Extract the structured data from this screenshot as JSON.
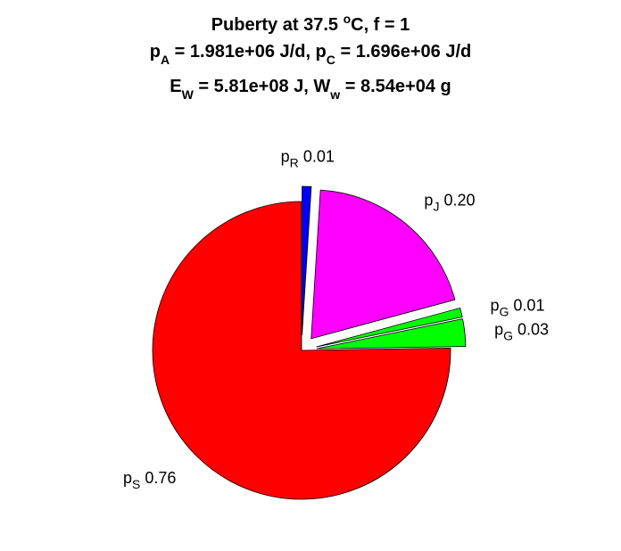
{
  "chart_data": {
    "type": "pie",
    "title": [
      [
        "Puberty at 37.5 ",
        "o",
        "C, f = 1"
      ],
      [
        "p",
        "A",
        " = 1.981e+06 J/d,  p",
        "C",
        " = 1.696e+06 J/d"
      ],
      [
        "E",
        "W",
        " = 5.81e+08 J, W",
        "w",
        " = 8.54e+04 g"
      ]
    ],
    "categories": [
      [
        "p",
        "R"
      ],
      [
        "p",
        "J"
      ],
      [
        "p",
        "G"
      ],
      [
        "p",
        "G"
      ],
      [
        "p",
        "S"
      ]
    ],
    "values": [
      0.01,
      0.2,
      0.01,
      0.03,
      0.76
    ],
    "value_labels": [
      "0.01",
      "0.20",
      "0.01",
      "0.03",
      "0.76"
    ],
    "colors": [
      "#0000ff",
      "#ff00ff",
      "#00ff00",
      "#00ff00",
      "#ff0000"
    ],
    "explode": [
      true,
      true,
      true,
      true,
      false
    ]
  }
}
